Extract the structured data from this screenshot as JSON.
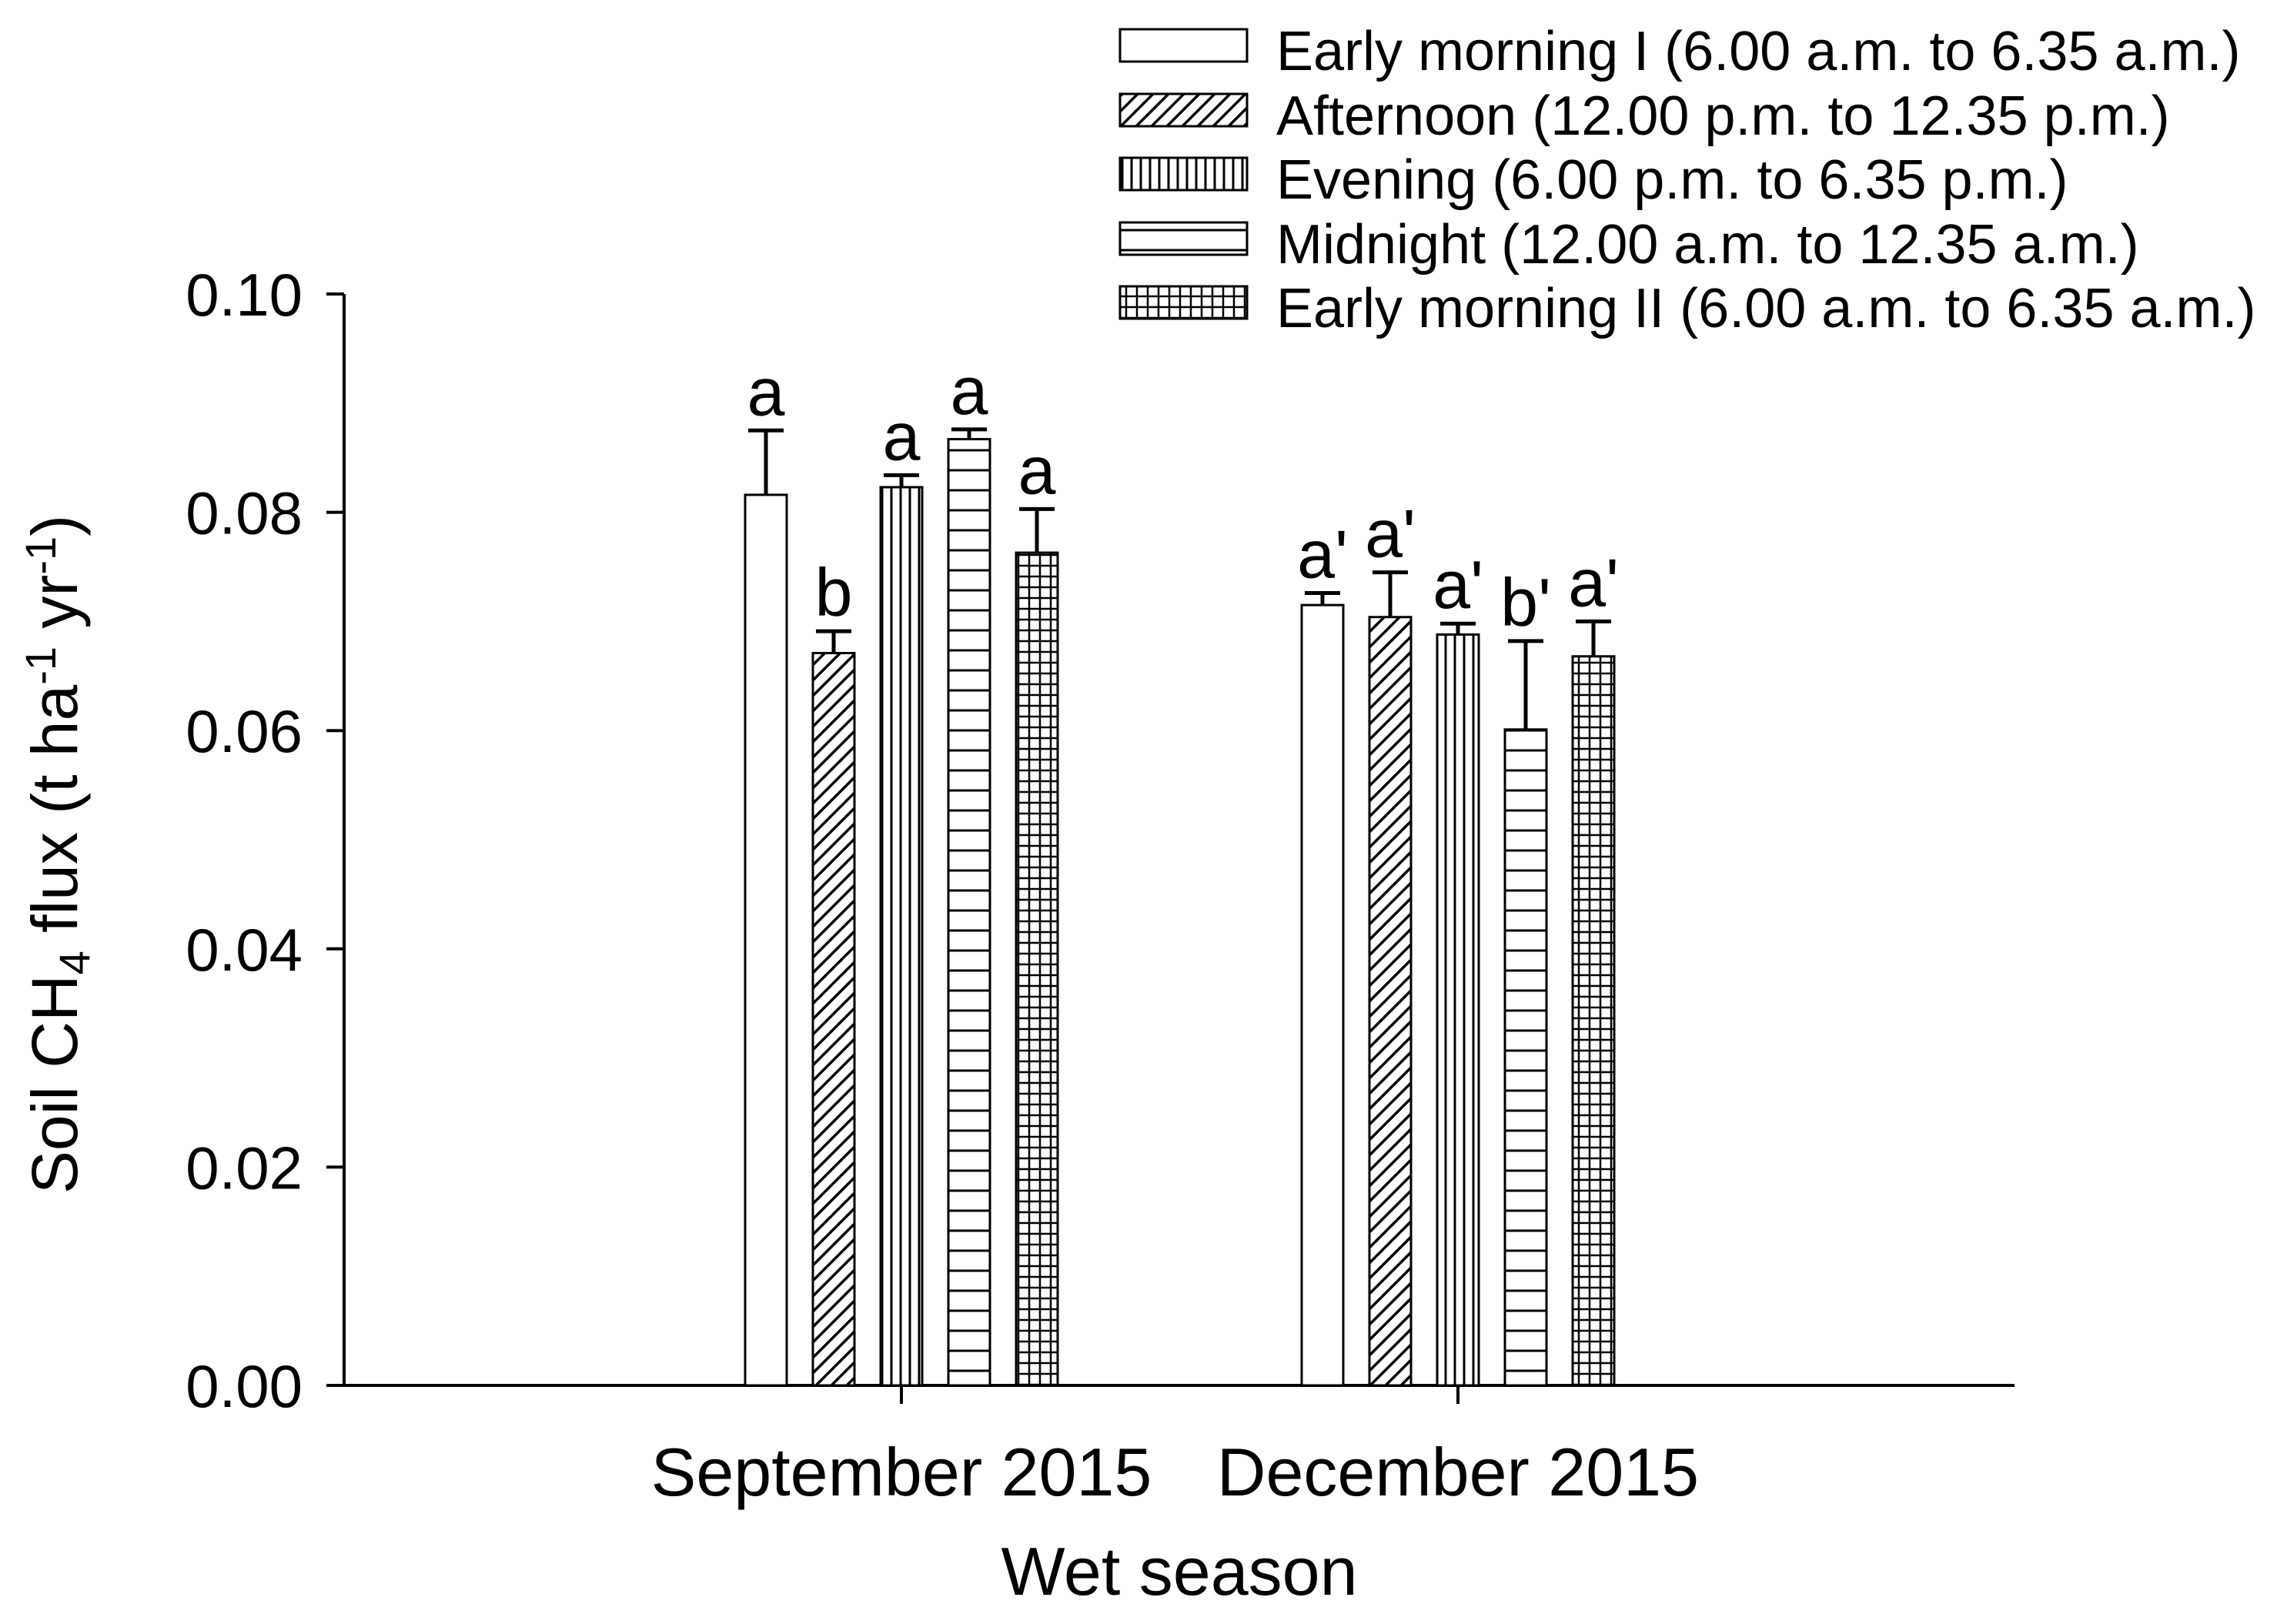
{
  "colors": {
    "ink": "#000000",
    "background": "#ffffff"
  },
  "chart_data": {
    "type": "bar",
    "title": "",
    "xlabel": "Wet season",
    "ylabel": "Soil CH4 flux (t ha-1 yr-1)",
    "ylabel_parts": [
      {
        "t": "Soil CH",
        "s": "n"
      },
      {
        "t": "4",
        "s": "sub"
      },
      {
        "t": " flux (t ha",
        "s": "n"
      },
      {
        "t": "-1",
        "s": "sup"
      },
      {
        "t": " yr",
        "s": "n"
      },
      {
        "t": "-1",
        "s": "sup"
      },
      {
        "t": ")",
        "s": "n"
      }
    ],
    "ylim": [
      0,
      0.1
    ],
    "yticks": [
      0.0,
      0.02,
      0.04,
      0.06,
      0.08,
      0.1
    ],
    "ytick_decimals": 2,
    "grid": false,
    "legend_position": "top-right",
    "categories": [
      "September 2015",
      "December 2015"
    ],
    "series": [
      {
        "name": "Early morning I (6.00 a.m. to 6.35 a.m.)",
        "pattern": "plain",
        "values": [
          0.0816,
          0.0715
        ],
        "errors": [
          0.0059,
          0.0011
        ],
        "letters": [
          "a",
          "a'"
        ]
      },
      {
        "name": "Afternoon (12.00 p.m. to 12.35 p.m.)",
        "pattern": "diagonal",
        "values": [
          0.0671,
          0.0704
        ],
        "errors": [
          0.002,
          0.0041
        ],
        "letters": [
          "b",
          "a'"
        ]
      },
      {
        "name": "Evening (6.00 p.m. to 6.35 p.m.)",
        "pattern": "vertical",
        "values": [
          0.0823,
          0.0688
        ],
        "errors": [
          0.0011,
          0.001
        ],
        "letters": [
          "a",
          "a'"
        ]
      },
      {
        "name": "Midnight (12.00 a.m. to 12.35 a.m.)",
        "pattern": "horizontal",
        "values": [
          0.0867,
          0.0601
        ],
        "errors": [
          0.0009,
          0.0081
        ],
        "letters": [
          "a",
          "b'"
        ]
      },
      {
        "name": "Early morning II (6.00 a.m. to 6.35 a.m.)",
        "pattern": "grid",
        "values": [
          0.0763,
          0.0668
        ],
        "errors": [
          0.004,
          0.0032
        ],
        "letters": [
          "a",
          "a'"
        ]
      }
    ]
  }
}
